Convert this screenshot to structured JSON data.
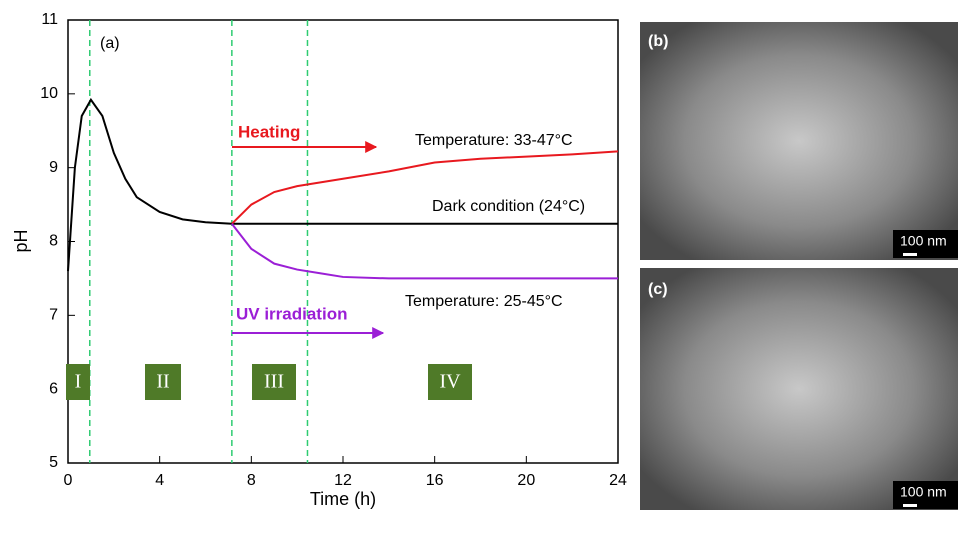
{
  "chart_data": {
    "type": "line",
    "panel_label": "(a)",
    "x_label": "Time (h)",
    "y_label": "pH",
    "xlim": [
      0,
      24
    ],
    "ylim": [
      5,
      11
    ],
    "xticks": [
      0,
      4,
      8,
      12,
      16,
      20,
      24
    ],
    "yticks": [
      5,
      6,
      7,
      8,
      9,
      10,
      11
    ],
    "vlines": [
      0.95,
      7.15,
      10.45
    ],
    "stages": [
      "I",
      "II",
      "III",
      "IV"
    ],
    "annotations": [
      "Temperature: 33-47°C",
      "Temperature: 25-45°C"
    ],
    "series": [
      {
        "name": "Dark condition (24°C)",
        "color": "#000000",
        "x": [
          0,
          0.3,
          0.6,
          1,
          1.5,
          2,
          2.5,
          3,
          4,
          5,
          6,
          7.15,
          10,
          14,
          18,
          24
        ],
        "values": [
          7.6,
          9.0,
          9.7,
          9.92,
          9.7,
          9.2,
          8.85,
          8.6,
          8.4,
          8.3,
          8.26,
          8.24,
          8.24,
          8.24,
          8.24,
          8.24
        ]
      },
      {
        "name": "Heating",
        "color": "#e8191f",
        "x": [
          7.15,
          8,
          9,
          10,
          12,
          14,
          16,
          18,
          20,
          22,
          24
        ],
        "values": [
          8.24,
          8.5,
          8.67,
          8.75,
          8.85,
          8.95,
          9.07,
          9.12,
          9.15,
          9.18,
          9.22
        ]
      },
      {
        "name": "UV irradiation",
        "color": "#9b1fd6",
        "x": [
          7.15,
          8,
          9,
          10,
          11,
          12,
          14,
          16,
          20,
          24
        ],
        "values": [
          8.24,
          7.9,
          7.7,
          7.62,
          7.57,
          7.52,
          7.5,
          7.5,
          7.5,
          7.5
        ]
      }
    ]
  },
  "images": [
    {
      "label": "(b)",
      "scale_bar": "100 nm"
    },
    {
      "label": "(c)",
      "scale_bar": "100 nm"
    }
  ]
}
